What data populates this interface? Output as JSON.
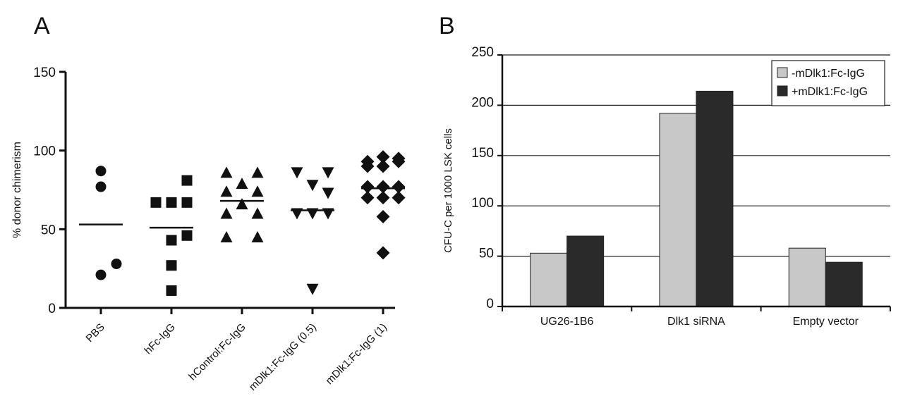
{
  "panels": {
    "a_letter": "A",
    "b_letter": "B"
  },
  "chart_data": [
    {
      "panel": "A",
      "type": "scatter",
      "ylabel": "% donor chimerism",
      "ylim": [
        0,
        150
      ],
      "yticks": [
        0,
        50,
        100,
        150
      ],
      "categories": [
        "PBS",
        "hFc-IgG",
        "hControl:Fc-IgG",
        "mDlk1:Fc-IgG (0.5)",
        "mDlk1:Fc-IgG (1)"
      ],
      "groups": [
        {
          "category": "PBS",
          "marker": "circle",
          "mean": 53,
          "points": [
            {
              "offset": 0,
              "value": 87
            },
            {
              "offset": 0,
              "value": 77
            },
            {
              "offset": 1,
              "value": 28
            },
            {
              "offset": 0,
              "value": 21
            }
          ]
        },
        {
          "category": "hFc-IgG",
          "marker": "square",
          "mean": 51,
          "points": [
            {
              "offset": 1,
              "value": 81
            },
            {
              "offset": -1,
              "value": 67
            },
            {
              "offset": 0,
              "value": 67
            },
            {
              "offset": 1,
              "value": 67
            },
            {
              "offset": 1,
              "value": 46
            },
            {
              "offset": 0,
              "value": 43
            },
            {
              "offset": 0,
              "value": 27
            },
            {
              "offset": 0,
              "value": 11
            }
          ]
        },
        {
          "category": "hControl:Fc-IgG",
          "marker": "triangle-up",
          "mean": 68,
          "points": [
            {
              "offset": -1,
              "value": 86
            },
            {
              "offset": 1,
              "value": 86
            },
            {
              "offset": 0,
              "value": 79
            },
            {
              "offset": -1,
              "value": 74
            },
            {
              "offset": 1,
              "value": 74
            },
            {
              "offset": 0,
              "value": 66
            },
            {
              "offset": -1,
              "value": 60
            },
            {
              "offset": 1,
              "value": 60
            },
            {
              "offset": -1,
              "value": 45
            },
            {
              "offset": 1,
              "value": 45
            }
          ]
        },
        {
          "category": "mDlk1:Fc-IgG (0.5)",
          "marker": "triangle-down",
          "mean": 62,
          "points": [
            {
              "offset": -1,
              "value": 86
            },
            {
              "offset": 1,
              "value": 86
            },
            {
              "offset": 0,
              "value": 78
            },
            {
              "offset": 1,
              "value": 73
            },
            {
              "offset": -1,
              "value": 60
            },
            {
              "offset": 0,
              "value": 60
            },
            {
              "offset": 1,
              "value": 60
            },
            {
              "offset": 0,
              "value": 12
            }
          ]
        },
        {
          "category": "mDlk1:Fc-IgG (1)",
          "marker": "diamond",
          "mean": 76,
          "points": [
            {
              "offset": 0,
              "value": 96
            },
            {
              "offset": 1,
              "value": 95
            },
            {
              "offset": -1,
              "value": 93
            },
            {
              "offset": 1,
              "value": 93
            },
            {
              "offset": -1,
              "value": 90
            },
            {
              "offset": 0,
              "value": 90
            },
            {
              "offset": -1,
              "value": 77
            },
            {
              "offset": 0,
              "value": 77
            },
            {
              "offset": 1,
              "value": 77
            },
            {
              "offset": -1,
              "value": 70
            },
            {
              "offset": 0,
              "value": 70
            },
            {
              "offset": 1,
              "value": 70
            },
            {
              "offset": 0,
              "value": 58
            },
            {
              "offset": 0,
              "value": 35
            }
          ]
        }
      ]
    },
    {
      "panel": "B",
      "type": "bar",
      "ylabel": "CFU-C per 1000 LSK cells",
      "ylim": [
        0,
        250
      ],
      "yticks": [
        0,
        50,
        100,
        150,
        200,
        250
      ],
      "grid": true,
      "legend_position": "top-right",
      "categories": [
        "UG26-1B6",
        "Dlk1 siRNA",
        "Empty vector"
      ],
      "series": [
        {
          "name": "-mDlk1:Fc-IgG",
          "color": "#c8c8c8",
          "values": [
            53,
            192,
            58
          ]
        },
        {
          "name": "+mDlk1:Fc-IgG",
          "color": "#2a2a2a",
          "values": [
            70,
            214,
            44
          ]
        }
      ]
    }
  ]
}
